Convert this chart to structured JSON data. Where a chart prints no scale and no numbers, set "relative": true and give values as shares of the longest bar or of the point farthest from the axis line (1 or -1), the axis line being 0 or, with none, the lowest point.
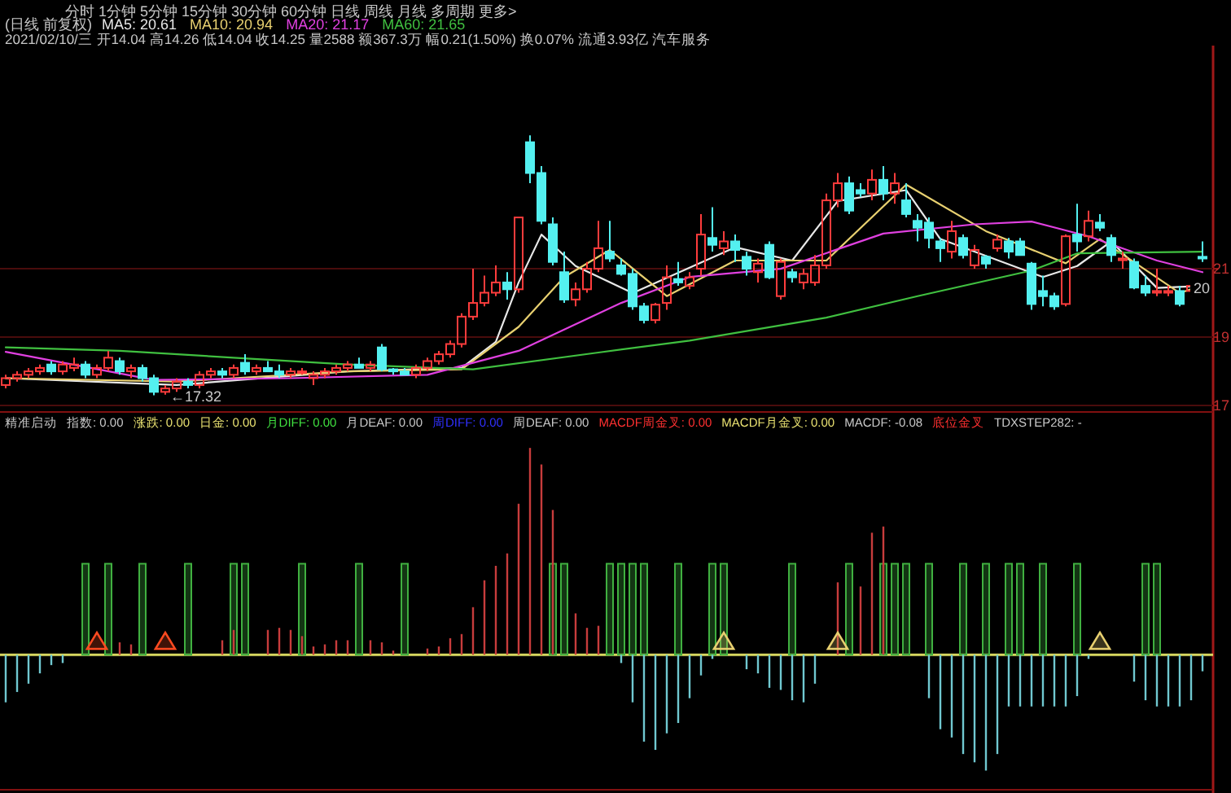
{
  "chart_data": [
    {
      "type": "candlestick",
      "title": "(日线 前复权)",
      "subtitle": "2021/02/10/三 开14.04 高14.26 低14.04 收14.25 量2588 额367.3万 幅0.21(1.50%) 换0.07% 流通3.93亿 汽车服务",
      "annotations": [
        "分时 1分钟 5分钟 15分钟 30分钟 60分钟 日线 周线 月线 多周期 更多>",
        {
          "text": "←17.32",
          "y": 17.32
        },
        {
          "text": "20",
          "y": 20.48
        }
      ],
      "categories": [
        null,
        null,
        null,
        null,
        null,
        null,
        null,
        null,
        null,
        null,
        null,
        null,
        null,
        null,
        null,
        null,
        null,
        null,
        null,
        null,
        null,
        null,
        null,
        null,
        null,
        null,
        null,
        null,
        null,
        null,
        null,
        null,
        null,
        null,
        null,
        null,
        null,
        null,
        null,
        null,
        null,
        null,
        null,
        null,
        null,
        null,
        null,
        null,
        null,
        null,
        null,
        null,
        null,
        null,
        null,
        null,
        null,
        null,
        null,
        null,
        null,
        null,
        null,
        null,
        null,
        null,
        null,
        null,
        null,
        null,
        null,
        null,
        null,
        null,
        null,
        null,
        null,
        null,
        null,
        null,
        null,
        null,
        null,
        null,
        null,
        null,
        null,
        null,
        null,
        null,
        null,
        null,
        null,
        null,
        null,
        null,
        null,
        null,
        null,
        null,
        null,
        null,
        null,
        null,
        null,
        null
      ],
      "ohlc": [
        [
          17.6,
          17.9,
          17.5,
          17.8
        ],
        [
          17.8,
          18.0,
          17.7,
          17.9
        ],
        [
          17.9,
          18.1,
          17.8,
          18.0
        ],
        [
          18.0,
          18.2,
          17.9,
          18.1
        ],
        [
          18.2,
          18.3,
          17.9,
          18.0
        ],
        [
          18.0,
          18.3,
          17.9,
          18.2
        ],
        [
          18.1,
          18.4,
          18.0,
          18.2
        ],
        [
          18.2,
          18.3,
          17.8,
          17.9
        ],
        [
          17.9,
          18.2,
          17.8,
          18.1
        ],
        [
          18.1,
          18.6,
          18.0,
          18.4
        ],
        [
          18.3,
          18.4,
          17.9,
          18.0
        ],
        [
          18.0,
          18.2,
          17.8,
          18.1
        ],
        [
          18.1,
          18.2,
          17.7,
          17.8
        ],
        [
          17.8,
          17.9,
          17.3,
          17.4
        ],
        [
          17.4,
          17.6,
          17.32,
          17.5
        ],
        [
          17.5,
          17.8,
          17.4,
          17.7
        ],
        [
          17.7,
          17.8,
          17.5,
          17.6
        ],
        [
          17.6,
          18.0,
          17.5,
          17.9
        ],
        [
          17.9,
          18.1,
          17.8,
          18.0
        ],
        [
          18.0,
          18.1,
          17.8,
          17.9
        ],
        [
          17.9,
          18.2,
          17.8,
          18.1
        ],
        [
          18.25,
          18.5,
          17.9,
          18.0
        ],
        [
          18.0,
          18.2,
          17.9,
          18.1
        ],
        [
          18.1,
          18.3,
          18.0,
          18.0
        ],
        [
          18.0,
          18.2,
          17.8,
          17.9
        ],
        [
          17.9,
          18.1,
          17.8,
          18.0
        ],
        [
          18.0,
          18.1,
          17.9,
          18.0
        ],
        [
          17.8,
          18.0,
          17.6,
          17.9
        ],
        [
          17.9,
          18.1,
          17.8,
          18.0
        ],
        [
          18.0,
          18.2,
          17.9,
          18.1
        ],
        [
          18.1,
          18.3,
          18.0,
          18.2
        ],
        [
          18.2,
          18.4,
          18.1,
          18.1
        ],
        [
          18.1,
          18.3,
          18.0,
          18.2
        ],
        [
          18.7,
          18.8,
          18.0,
          18.06
        ],
        [
          18.06,
          18.1,
          17.9,
          18.0
        ],
        [
          18.0,
          18.1,
          17.9,
          17.9
        ],
        [
          17.9,
          18.2,
          17.8,
          18.1
        ],
        [
          18.1,
          18.4,
          18.0,
          18.3
        ],
        [
          18.3,
          18.6,
          18.2,
          18.5
        ],
        [
          18.5,
          18.9,
          18.4,
          18.8
        ],
        [
          18.8,
          19.7,
          18.7,
          19.6
        ],
        [
          19.6,
          21.0,
          19.5,
          20.0
        ],
        [
          20.0,
          20.8,
          19.9,
          20.3
        ],
        [
          20.3,
          21.1,
          20.2,
          20.6
        ],
        [
          20.6,
          20.9,
          20.1,
          20.4
        ],
        [
          20.4,
          22.5,
          20.3,
          22.5
        ],
        [
          24.7,
          24.9,
          23.5,
          23.8
        ],
        [
          23.8,
          24.0,
          22.3,
          22.4
        ],
        [
          22.3,
          22.5,
          21.1,
          21.2
        ],
        [
          20.9,
          21.5,
          20.0,
          20.1
        ],
        [
          20.1,
          20.6,
          19.9,
          20.4
        ],
        [
          20.4,
          21.2,
          20.3,
          21.0
        ],
        [
          21.0,
          22.4,
          20.9,
          21.6
        ],
        [
          21.5,
          22.4,
          21.2,
          21.3
        ],
        [
          21.1,
          21.3,
          20.8,
          20.85
        ],
        [
          20.85,
          21.0,
          19.8,
          19.9
        ],
        [
          19.9,
          20.0,
          19.4,
          19.5
        ],
        [
          19.5,
          20.0,
          19.4,
          19.95
        ],
        [
          20.0,
          21.1,
          19.8,
          20.75
        ],
        [
          20.7,
          21.2,
          20.5,
          20.6
        ],
        [
          20.5,
          20.9,
          20.4,
          20.75
        ],
        [
          21.0,
          22.6,
          20.8,
          22.0
        ],
        [
          21.9,
          22.8,
          21.5,
          21.7
        ],
        [
          21.6,
          22.1,
          21.4,
          21.8
        ],
        [
          21.8,
          22.0,
          21.2,
          21.55
        ],
        [
          21.35,
          21.5,
          20.8,
          21.0
        ],
        [
          20.9,
          21.3,
          20.6,
          21.15
        ],
        [
          21.7,
          21.8,
          20.7,
          20.75
        ],
        [
          20.2,
          21.3,
          20.1,
          21.2
        ],
        [
          20.9,
          21.0,
          20.6,
          20.75
        ],
        [
          20.6,
          21.0,
          20.4,
          20.85
        ],
        [
          20.6,
          21.4,
          20.5,
          21.1
        ],
        [
          21.1,
          23.2,
          21.0,
          23.0
        ],
        [
          23.0,
          23.8,
          22.8,
          23.5
        ],
        [
          23.5,
          23.7,
          22.6,
          22.7
        ],
        [
          23.3,
          23.5,
          23.1,
          23.2
        ],
        [
          23.2,
          23.9,
          23.0,
          23.6
        ],
        [
          23.6,
          24.0,
          23.0,
          23.2
        ],
        [
          23.2,
          23.8,
          22.9,
          23.5
        ],
        [
          23.0,
          23.5,
          22.5,
          22.6
        ],
        [
          22.4,
          22.6,
          21.8,
          22.2
        ],
        [
          22.35,
          22.5,
          21.6,
          21.9
        ],
        [
          21.8,
          21.9,
          21.2,
          21.6
        ],
        [
          21.5,
          22.4,
          21.3,
          22.1
        ],
        [
          21.9,
          22.0,
          21.3,
          21.4
        ],
        [
          21.1,
          21.7,
          21.0,
          21.55
        ],
        [
          21.35,
          21.4,
          21.0,
          21.15
        ],
        [
          21.6,
          22.0,
          21.5,
          21.85
        ],
        [
          21.8,
          21.9,
          21.3,
          21.5
        ],
        [
          21.8,
          21.9,
          21.4,
          21.4
        ],
        [
          21.15,
          21.2,
          19.8,
          19.97
        ],
        [
          20.35,
          20.8,
          19.9,
          20.2
        ],
        [
          20.2,
          20.3,
          19.8,
          19.9
        ],
        [
          19.97,
          22.0,
          19.9,
          21.95
        ],
        [
          22.0,
          22.9,
          21.5,
          21.8
        ],
        [
          21.95,
          22.7,
          21.8,
          22.4
        ],
        [
          22.35,
          22.6,
          22.1,
          22.2
        ],
        [
          21.9,
          22.0,
          21.2,
          21.4
        ],
        [
          21.25,
          21.5,
          21.0,
          21.3
        ],
        [
          21.2,
          21.3,
          20.4,
          20.45
        ],
        [
          20.5,
          20.8,
          20.2,
          20.3
        ],
        [
          20.3,
          21.0,
          20.2,
          20.35
        ],
        [
          20.3,
          20.5,
          20.2,
          20.35
        ],
        [
          20.35,
          20.5,
          19.9,
          19.97
        ],
        [
          20.35,
          20.6,
          20.2,
          20.5
        ],
        [
          21.35,
          21.8,
          21.2,
          21.3
        ]
      ],
      "series": [
        {
          "name": "MA5: 20.61",
          "type": "line",
          "color": "#e8e8e8",
          "values": [
            17.8,
            null,
            null,
            null,
            null,
            null,
            null,
            null,
            null,
            null,
            null,
            null,
            null,
            null,
            null,
            17.6,
            null,
            null,
            null,
            null,
            null,
            null,
            null,
            null,
            null,
            null,
            null,
            null,
            null,
            null,
            18.0,
            null,
            null,
            null,
            null,
            null,
            null,
            null,
            null,
            null,
            18.1,
            null,
            null,
            18.86,
            null,
            20.6,
            null,
            22.0,
            null,
            null,
            21.08,
            null,
            null,
            null,
            null,
            20.29,
            null,
            null,
            null,
            null,
            null,
            null,
            null,
            null,
            21.63,
            null,
            null,
            null,
            null,
            21.24,
            null,
            null,
            null,
            22.98,
            null,
            null,
            null,
            null,
            null,
            23.3,
            null,
            null,
            21.87,
            null,
            null,
            null,
            null,
            null,
            null,
            null,
            null,
            20.76,
            null,
            null,
            21.08,
            null,
            null,
            21.8,
            null,
            null,
            null,
            20.44,
            null,
            null,
            null,
            20.5
          ]
        },
        {
          "name": "MA10: 20.94",
          "type": "line",
          "color": "#e8d070",
          "values": [
            17.8,
            null,
            null,
            null,
            null,
            null,
            null,
            null,
            null,
            null,
            null,
            null,
            null,
            null,
            null,
            17.7,
            null,
            null,
            null,
            null,
            null,
            null,
            null,
            null,
            null,
            null,
            null,
            null,
            null,
            null,
            18.0,
            null,
            null,
            null,
            null,
            null,
            null,
            null,
            null,
            null,
            18.06,
            null,
            null,
            null,
            null,
            19.3,
            null,
            null,
            null,
            20.76,
            null,
            null,
            null,
            21.55,
            null,
            null,
            null,
            null,
            20.2,
            null,
            null,
            null,
            null,
            null,
            21.24,
            null,
            null,
            null,
            null,
            null,
            null,
            null,
            21.24,
            null,
            null,
            null,
            null,
            null,
            null,
            23.46,
            null,
            null,
            null,
            null,
            null,
            null,
            22.1,
            null,
            null,
            null,
            null,
            null,
            null,
            21.16,
            null,
            null,
            21.87,
            null,
            null,
            null,
            null,
            null,
            null,
            20.29,
            null,
            20.52
          ]
        },
        {
          "name": "MA20: 21.17",
          "type": "line",
          "color": "#e040e0",
          "values": [
            18.57,
            null,
            null,
            null,
            null,
            null,
            null,
            null,
            null,
            null,
            null,
            null,
            null,
            17.75,
            null,
            null,
            null,
            null,
            null,
            null,
            null,
            null,
            null,
            null,
            null,
            17.8,
            null,
            null,
            null,
            null,
            null,
            null,
            null,
            null,
            null,
            null,
            null,
            17.9,
            null,
            null,
            null,
            null,
            null,
            null,
            null,
            18.6,
            null,
            null,
            null,
            null,
            null,
            null,
            null,
            null,
            20.0,
            null,
            null,
            null,
            null,
            null,
            20.76,
            null,
            null,
            null,
            null,
            null,
            null,
            null,
            21.0,
            null,
            null,
            null,
            null,
            null,
            null,
            null,
            null,
            22.03,
            null,
            null,
            null,
            null,
            null,
            null,
            null,
            22.3,
            null,
            null,
            null,
            null,
            22.38,
            null,
            null,
            null,
            null,
            21.95,
            null,
            null,
            null,
            null,
            null,
            21.24,
            null,
            null,
            null,
            20.9
          ]
        },
        {
          "name": "MA60: 21.65",
          "type": "line",
          "color": "#40c040",
          "values": [
            18.7,
            null,
            null,
            null,
            null,
            null,
            null,
            null,
            null,
            null,
            18.6,
            null,
            null,
            null,
            null,
            null,
            null,
            null,
            null,
            null,
            18.4,
            null,
            null,
            null,
            null,
            null,
            null,
            null,
            null,
            null,
            18.2,
            null,
            null,
            null,
            null,
            null,
            null,
            null,
            null,
            null,
            null,
            18.06,
            null,
            null,
            null,
            null,
            null,
            null,
            null,
            null,
            null,
            null,
            18.55,
            null,
            null,
            null,
            null,
            null,
            null,
            null,
            18.9,
            null,
            null,
            null,
            null,
            null,
            null,
            null,
            null,
            null,
            null,
            null,
            19.57,
            null,
            null,
            null,
            null,
            null,
            null,
            null,
            20.2,
            null,
            null,
            null,
            null,
            null,
            null,
            null,
            null,
            null,
            20.95,
            null,
            null,
            null,
            21.45,
            null,
            null,
            null,
            null,
            null,
            null,
            null,
            null,
            null,
            null,
            21.5
          ]
        }
      ],
      "ylim": [
        16.86,
        27.43
      ],
      "yticks": [
        17,
        19,
        21
      ],
      "grid": "y",
      "legend": "top left"
    },
    {
      "type": "bar",
      "relative": true,
      "title": "精准启动",
      "legend": false,
      "annotations": [
        "指数: 0.00",
        "涨跌: 0.00",
        "日金: 0.00",
        "月DIFF: 0.00",
        "月DEAF: 0.00",
        "周DIFF: 0.00",
        "周DEAF: 0.00",
        "MACDF周金叉: 0.00",
        "MACDF月金叉: 0.00",
        "MACDF: -0.08",
        "底位金叉",
        "TDXSTEP282: -"
      ],
      "categories": [
        null,
        null,
        null,
        null,
        null,
        null,
        null,
        null,
        null,
        null,
        null,
        null,
        null,
        null,
        null,
        null,
        null,
        null,
        null,
        null,
        null,
        null,
        null,
        null,
        null,
        null,
        null,
        null,
        null,
        null,
        null,
        null,
        null,
        null,
        null,
        null,
        null,
        null,
        null,
        null,
        null,
        null,
        null,
        null,
        null,
        null,
        null,
        null,
        null,
        null,
        null,
        null,
        null,
        null,
        null,
        null,
        null,
        null,
        null,
        null,
        null,
        null,
        null,
        null,
        null,
        null,
        null,
        null,
        null,
        null,
        null,
        null,
        null,
        null,
        null,
        null,
        null,
        null,
        null,
        null,
        null,
        null,
        null,
        null,
        null,
        null,
        null,
        null,
        null,
        null,
        null,
        null,
        null,
        null,
        null,
        null,
        null,
        null,
        null,
        null,
        null,
        null,
        null,
        null,
        null,
        null
      ],
      "ref_lines": [
        {
          "axis": "y",
          "value": 0,
          "color": "#d8d860"
        }
      ],
      "series": [
        {
          "type": "bar",
          "color": "#40b040",
          "values": [
            null,
            null,
            null,
            null,
            null,
            null,
            null,
            0.44,
            null,
            0.44,
            null,
            null,
            0.44,
            null,
            null,
            null,
            0.44,
            null,
            null,
            null,
            0.44,
            0.44,
            null,
            null,
            null,
            null,
            0.44,
            null,
            null,
            null,
            null,
            0.44,
            null,
            null,
            null,
            0.44,
            null,
            null,
            null,
            null,
            null,
            null,
            null,
            null,
            null,
            null,
            null,
            null,
            0.44,
            0.44,
            null,
            null,
            null,
            0.44,
            0.44,
            0.44,
            0.44,
            null,
            null,
            0.44,
            null,
            null,
            0.44,
            0.44,
            null,
            null,
            null,
            null,
            null,
            0.44,
            null,
            null,
            null,
            null,
            0.44,
            null,
            null,
            0.44,
            0.44,
            0.44,
            null,
            0.44,
            null,
            null,
            0.44,
            null,
            0.44,
            null,
            0.44,
            0.44,
            null,
            0.44,
            null,
            null,
            0.44,
            null,
            null,
            null,
            null,
            null,
            0.44,
            0.44,
            null,
            null,
            null,
            null
          ]
        },
        {
          "type": "bar",
          "color": "#c83c3c",
          "values": [
            null,
            null,
            null,
            null,
            null,
            null,
            null,
            null,
            null,
            null,
            0.06,
            0.05,
            null,
            null,
            null,
            null,
            null,
            null,
            null,
            0.07,
            0.12,
            null,
            null,
            0.12,
            0.13,
            0.12,
            0.09,
            0.04,
            0.05,
            0.07,
            0.07,
            null,
            0.07,
            0.06,
            0.02,
            null,
            null,
            0.03,
            0.04,
            0.08,
            0.1,
            0.23,
            0.36,
            0.43,
            0.49,
            0.73,
            1,
            0.92,
            0.7,
            null,
            0.2,
            0.13,
            0.14,
            null,
            null,
            null,
            null,
            null,
            null,
            null,
            null,
            null,
            null,
            null,
            null,
            null,
            null,
            null,
            null,
            null,
            null,
            null,
            null,
            0.35,
            null,
            0.33,
            0.59,
            0.62,
            null,
            null,
            null,
            null,
            null,
            null,
            null,
            null,
            null,
            null,
            null,
            null,
            null,
            null,
            null,
            null,
            null,
            null,
            null,
            null,
            null,
            null,
            null,
            null,
            null,
            null,
            null,
            null
          ]
        },
        {
          "type": "bar",
          "color": "#70c8d0",
          "values": [
            -0.23,
            -0.18,
            -0.14,
            -0.09,
            -0.05,
            -0.04,
            null,
            null,
            null,
            null,
            null,
            null,
            null,
            null,
            null,
            null,
            null,
            null,
            null,
            null,
            null,
            null,
            null,
            null,
            null,
            null,
            null,
            null,
            null,
            null,
            null,
            null,
            null,
            null,
            null,
            null,
            null,
            null,
            null,
            null,
            null,
            null,
            null,
            null,
            null,
            null,
            null,
            null,
            null,
            null,
            null,
            null,
            null,
            null,
            -0.04,
            -0.23,
            -0.42,
            -0.46,
            -0.38,
            -0.33,
            -0.21,
            -0.1,
            -0.02,
            null,
            null,
            -0.07,
            -0.09,
            -0.16,
            -0.17,
            -0.22,
            -0.23,
            -0.14,
            null,
            null,
            null,
            null,
            null,
            null,
            null,
            null,
            null,
            -0.21,
            -0.36,
            -0.4,
            -0.48,
            -0.52,
            -0.56,
            -0.48,
            -0.25,
            -0.25,
            -0.25,
            -0.25,
            -0.25,
            -0.25,
            -0.2,
            -0.02,
            null,
            null,
            null,
            -0.13,
            -0.22,
            -0.25,
            -0.25,
            -0.25,
            -0.22,
            -0.08
          ]
        },
        {
          "type": "scatter",
          "marker": "triangle",
          "color": "#ff4a20",
          "values": [
            null,
            null,
            null,
            null,
            null,
            null,
            null,
            null,
            0.06,
            null,
            null,
            null,
            null,
            null,
            0.06,
            null,
            null,
            null,
            null,
            null,
            null,
            null,
            null,
            null,
            null,
            null,
            null,
            null,
            null,
            null,
            null,
            null,
            null,
            null,
            null,
            null,
            null,
            null,
            null,
            null,
            null,
            null,
            null,
            null,
            null,
            null,
            null,
            null,
            null,
            null,
            null,
            null,
            null,
            null,
            null,
            null,
            null,
            null,
            null,
            null,
            null,
            null,
            null,
            null,
            null,
            null,
            null,
            null,
            null,
            null,
            null,
            null,
            null,
            null,
            null,
            null,
            null,
            null,
            null,
            null,
            null,
            null,
            null,
            null,
            null,
            null,
            null,
            null,
            null,
            null,
            null,
            null,
            null,
            null,
            null,
            null,
            null,
            null,
            null,
            null,
            null,
            null,
            null,
            null,
            null,
            null
          ]
        },
        {
          "type": "scatter",
          "marker": "triangle",
          "color": "#e8d070",
          "values": [
            null,
            null,
            null,
            null,
            null,
            null,
            null,
            null,
            null,
            null,
            null,
            null,
            null,
            null,
            null,
            null,
            null,
            null,
            null,
            null,
            null,
            null,
            null,
            null,
            null,
            null,
            null,
            null,
            null,
            null,
            null,
            null,
            null,
            null,
            null,
            null,
            null,
            null,
            null,
            null,
            null,
            null,
            null,
            null,
            null,
            null,
            null,
            null,
            null,
            null,
            null,
            null,
            null,
            null,
            null,
            null,
            null,
            null,
            null,
            null,
            null,
            null,
            null,
            0.06,
            null,
            null,
            null,
            null,
            null,
            null,
            null,
            null,
            null,
            0.06,
            null,
            null,
            null,
            null,
            null,
            null,
            null,
            null,
            null,
            null,
            null,
            null,
            null,
            null,
            null,
            null,
            null,
            null,
            null,
            null,
            null,
            null,
            0.06,
            null,
            null,
            null,
            null,
            null,
            null,
            null,
            null,
            null
          ]
        }
      ]
    }
  ]
}
